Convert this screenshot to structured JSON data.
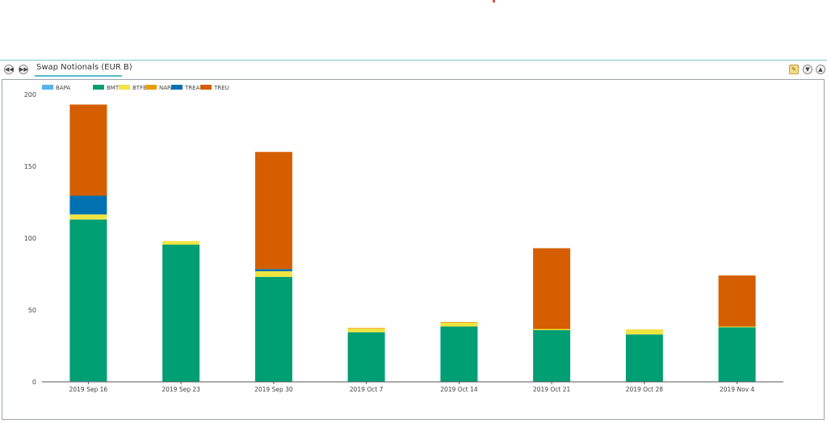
{
  "panel": {
    "title": "Swap Notionals (EUR B)"
  },
  "icons": {
    "nav_prev": "double-chevron-left-icon",
    "nav_next": "double-chevron-right-icon",
    "edit": "edit-note-icon",
    "collapse": "double-chevron-down-icon",
    "expand": "double-chevron-up-icon"
  },
  "chart_data": {
    "type": "bar",
    "stacked": true,
    "categories": [
      "2019 Sep 16",
      "2019 Sep 23",
      "2019 Sep 30",
      "2019 Oct 7",
      "2019 Oct 14",
      "2019 Oct 21",
      "2019 Oct 28",
      "2019 Nov 4"
    ],
    "series": [
      {
        "name": "BAPA",
        "color": "#56b4e9",
        "values": [
          0.5,
          0,
          0,
          0,
          0,
          0,
          0,
          0
        ]
      },
      {
        "name": "BMTF",
        "color": "#009e73",
        "values": [
          112.5,
          95.5,
          73,
          34.5,
          38.5,
          36,
          33,
          38
        ]
      },
      {
        "name": "BTFE",
        "color": "#f0e442",
        "values": [
          3.5,
          2.5,
          4,
          2.5,
          2.5,
          0.5,
          3.5,
          0.5
        ]
      },
      {
        "name": "NAPA",
        "color": "#e69f00",
        "values": [
          0,
          0,
          0,
          0.5,
          0.5,
          0.5,
          0,
          0
        ]
      },
      {
        "name": "TREA",
        "color": "#0072b2",
        "values": [
          13,
          0,
          1.5,
          0,
          0,
          0,
          0,
          0
        ]
      },
      {
        "name": "TREU",
        "color": "#d55e00",
        "values": [
          63.5,
          0,
          81.5,
          0,
          0,
          56,
          0,
          35.5
        ]
      }
    ],
    "yticks": [
      0,
      50,
      100,
      150,
      200
    ],
    "ylim": [
      0,
      200
    ],
    "legend_placement": "top-left",
    "grid": false
  }
}
